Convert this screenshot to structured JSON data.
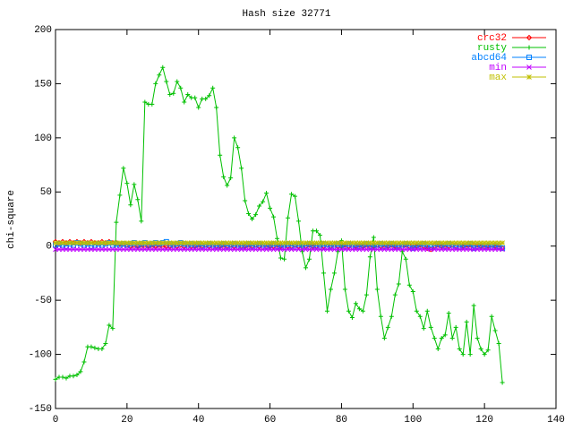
{
  "chart_data": {
    "type": "line",
    "title": "Hash size 32771",
    "y_label": "chi-square",
    "xlim": [
      0,
      140
    ],
    "xticks": [
      0,
      20,
      40,
      60,
      80,
      100,
      120,
      140
    ],
    "ylim": [
      -150,
      200
    ],
    "yticks": [
      -150,
      -100,
      -50,
      0,
      50,
      100,
      150,
      200
    ],
    "legend": "upper right",
    "x": [
      0,
      1,
      2,
      3,
      4,
      5,
      6,
      7,
      8,
      9,
      10,
      11,
      12,
      13,
      14,
      15,
      16,
      17,
      18,
      19,
      20,
      21,
      22,
      23,
      24,
      25,
      26,
      27,
      28,
      29,
      30,
      31,
      32,
      33,
      34,
      35,
      36,
      37,
      38,
      39,
      40,
      41,
      42,
      43,
      44,
      45,
      46,
      47,
      48,
      49,
      50,
      51,
      52,
      53,
      54,
      55,
      56,
      57,
      58,
      59,
      60,
      61,
      62,
      63,
      64,
      65,
      66,
      67,
      68,
      69,
      70,
      71,
      72,
      73,
      74,
      75,
      76,
      77,
      78,
      79,
      80,
      81,
      82,
      83,
      84,
      85,
      86,
      87,
      88,
      89,
      90,
      91,
      92,
      93,
      94,
      95,
      96,
      97,
      98,
      99,
      100,
      101,
      102,
      103,
      104,
      105,
      106,
      107,
      108,
      109,
      110,
      111,
      112,
      113,
      114,
      115,
      116,
      117,
      118,
      119,
      120,
      121,
      122,
      123,
      124,
      125
    ],
    "series": [
      {
        "name": "crc32",
        "color": "#ff0000",
        "marker": "diamond",
        "values": [
          4,
          3,
          4,
          3,
          4,
          3,
          4,
          3,
          4,
          3,
          4,
          3,
          3,
          4,
          3,
          4,
          3,
          3,
          2,
          2,
          1,
          0,
          -1,
          0,
          -1,
          -1,
          0,
          -1,
          0,
          -1,
          -1,
          0,
          0,
          -1,
          0,
          1,
          0,
          -1,
          0,
          0,
          -1,
          0,
          1,
          0,
          -1,
          0,
          0,
          -1,
          0,
          1,
          0,
          -1,
          0,
          0,
          -1,
          0,
          1,
          0,
          -1,
          -1,
          0,
          0,
          1,
          0,
          -1,
          0,
          0,
          1,
          0,
          -1,
          0,
          1,
          0,
          0,
          -1,
          0,
          1,
          0,
          -1,
          0,
          0,
          1,
          0,
          -1,
          0,
          1,
          0,
          -1,
          -1,
          0,
          1,
          0,
          -1,
          0,
          1,
          0,
          0,
          -1,
          1,
          0,
          -1,
          0,
          1,
          0,
          -2,
          -3,
          0,
          1,
          0,
          -1,
          0,
          1,
          0,
          -1,
          0,
          1,
          -1,
          0,
          1,
          0,
          -1,
          0,
          1,
          0,
          1,
          -2
        ]
      },
      {
        "name": "rusty",
        "color": "#00c000",
        "marker": "plus",
        "values": [
          -123,
          -121,
          -121,
          -122,
          -120,
          -120,
          -119,
          -116,
          -107,
          -93,
          -93,
          -94,
          -95,
          -95,
          -90,
          -73,
          -76,
          22,
          47,
          72,
          58,
          38,
          57,
          43,
          23,
          133,
          131,
          131,
          150,
          158,
          165,
          152,
          140,
          141,
          152,
          146,
          133,
          140,
          137,
          137,
          128,
          136,
          136,
          139,
          146,
          128,
          84,
          64,
          56,
          63,
          100,
          91,
          72,
          42,
          30,
          25,
          29,
          37,
          41,
          49,
          35,
          27,
          7,
          -11,
          -12,
          26,
          48,
          46,
          23,
          -5,
          -20,
          -12,
          14,
          14,
          10,
          -25,
          -60,
          -40,
          -25,
          -5,
          5,
          -40,
          -60,
          -66,
          -53,
          -58,
          -60,
          -45,
          -10,
          8,
          -40,
          -65,
          -85,
          -75,
          -65,
          -45,
          -35,
          -5,
          -12,
          -36,
          -42,
          -60,
          -65,
          -76,
          -60,
          -75,
          -85,
          -95,
          -85,
          -82,
          -62,
          -85,
          -75,
          -95,
          -100,
          -70,
          -100,
          -55,
          -85,
          -95,
          -100,
          -96,
          -65,
          -78,
          -90,
          -126
        ]
      },
      {
        "name": "abcd64",
        "color": "#0080ff",
        "marker": "square",
        "values": [
          1,
          2,
          1,
          0,
          2,
          1,
          3,
          2,
          1,
          2,
          0,
          1,
          2,
          1,
          2,
          3,
          1,
          2,
          1,
          2,
          1,
          2,
          3,
          1,
          2,
          3,
          1,
          2,
          3,
          2,
          3,
          4,
          2,
          1,
          2,
          3,
          2,
          1,
          2,
          1,
          2,
          0,
          1,
          2,
          1,
          0,
          1,
          2,
          0,
          1,
          2,
          1,
          0,
          1,
          2,
          0,
          1,
          2,
          1,
          0,
          1,
          2,
          0,
          -1,
          1,
          2,
          0,
          1,
          2,
          1,
          0,
          2,
          1,
          0,
          1,
          2,
          -1,
          0,
          1,
          2,
          1,
          0,
          2,
          1,
          -1,
          0,
          1,
          2,
          0,
          -1,
          1,
          2,
          0,
          1,
          2,
          -1,
          0,
          1,
          2,
          0,
          -2,
          1,
          0,
          2,
          1,
          -1,
          0,
          2,
          1,
          0,
          2,
          1,
          0,
          -1,
          1,
          0,
          2,
          -2,
          0,
          1,
          0,
          -1,
          1,
          -1,
          0,
          -2
        ]
      },
      {
        "name": "min",
        "color": "#c000ff",
        "marker": "cross",
        "values": [
          -3,
          -3,
          -3,
          -3,
          -3,
          -3,
          -3,
          -3,
          -3,
          -3,
          -3,
          -3,
          -3,
          -3,
          -3,
          -3,
          -3,
          -3,
          -3,
          -3,
          -3,
          -3,
          -3,
          -3,
          -3,
          -3,
          -3,
          -3,
          -3,
          -3,
          -3,
          -3,
          -3,
          -3,
          -3,
          -3,
          -3,
          -3,
          -3,
          -3,
          -3,
          -3,
          -3,
          -3,
          -3,
          -3,
          -3,
          -3,
          -3,
          -3,
          -3,
          -3,
          -3,
          -3,
          -3,
          -3,
          -3,
          -3,
          -3,
          -3,
          -3,
          -3,
          -3,
          -3,
          -3,
          -3,
          -3,
          -3,
          -3,
          -3,
          -3,
          -3,
          -3,
          -3,
          -3,
          -3,
          -3,
          -3,
          -3,
          -3,
          -3,
          -3,
          -3,
          -3,
          -3,
          -3,
          -3,
          -3,
          -3,
          -3,
          -3,
          -3,
          -3,
          -3,
          -3,
          -3,
          -3,
          -3,
          -3,
          -3,
          -3,
          -3,
          -3,
          -3,
          -3,
          -3,
          -3,
          -3,
          -3,
          -3,
          -3,
          -3,
          -3,
          -3,
          -3,
          -3,
          -3,
          -3,
          -3,
          -3,
          -3,
          -3,
          -3,
          -3,
          -3,
          -3
        ]
      },
      {
        "name": "max",
        "color": "#c0c000",
        "marker": "star",
        "values": [
          3,
          3,
          3,
          3,
          3,
          3,
          3,
          3,
          3,
          3,
          3,
          3,
          3,
          3,
          3,
          3,
          3,
          3,
          3,
          3,
          3,
          3,
          3,
          3,
          3,
          3,
          3,
          3,
          3,
          3,
          3,
          3,
          3,
          3,
          3,
          3,
          3,
          3,
          3,
          3,
          3,
          3,
          3,
          3,
          3,
          3,
          3,
          3,
          3,
          3,
          3,
          3,
          3,
          3,
          3,
          3,
          3,
          3,
          3,
          3,
          3,
          3,
          3,
          3,
          3,
          3,
          3,
          3,
          3,
          3,
          3,
          3,
          3,
          3,
          3,
          3,
          3,
          3,
          3,
          3,
          3,
          3,
          3,
          3,
          3,
          3,
          3,
          3,
          3,
          3,
          3,
          3,
          3,
          3,
          3,
          3,
          3,
          3,
          3,
          3,
          3,
          3,
          3,
          3,
          3,
          3,
          3,
          3,
          3,
          3,
          3,
          3,
          3,
          3,
          3,
          3,
          3,
          3,
          3,
          3,
          3,
          3,
          3,
          3,
          3,
          3
        ]
      }
    ]
  }
}
